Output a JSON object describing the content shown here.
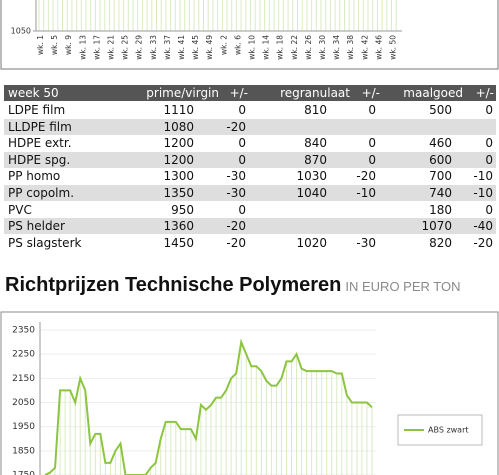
{
  "top_chart": {
    "yticks": [
      1050
    ],
    "x_labels": [
      "wk. 1",
      "wk. 5",
      "wk. 9",
      "wk. 13",
      "wk. 17",
      "wk. 21",
      "wk. 25",
      "wk. 29",
      "wk. 33",
      "wk. 37",
      "wk. 41",
      "wk. 45",
      "wk. 49",
      "wk. 2",
      "wk. 6",
      "wk. 10",
      "wk. 14",
      "wk. 18",
      "wk. 22",
      "wk. 26",
      "wk. 30",
      "wk. 34",
      "wk. 38",
      "wk. 42",
      "wk. 46",
      "wk. 50"
    ]
  },
  "table": {
    "header": [
      "week 50",
      "prime/virgin",
      "+/-",
      "regranulaat",
      "+/-",
      "maalgoed",
      "+/-"
    ],
    "rows": [
      [
        "LDPE film",
        1110,
        0,
        810,
        0,
        500,
        0
      ],
      [
        "LLDPE film",
        1080,
        -20,
        null,
        null,
        null,
        null
      ],
      [
        "HDPE extr.",
        1200,
        0,
        840,
        0,
        460,
        0
      ],
      [
        "HDPE spg.",
        1200,
        0,
        870,
        0,
        600,
        0
      ],
      [
        "PP homo",
        1300,
        -30,
        1030,
        -20,
        700,
        -10
      ],
      [
        "PP copolm.",
        1350,
        -30,
        1040,
        -10,
        740,
        -10
      ],
      [
        "PVC",
        950,
        0,
        null,
        null,
        180,
        0
      ],
      [
        "PS helder",
        1360,
        -20,
        null,
        null,
        1070,
        -40
      ],
      [
        "PS slagsterk",
        1450,
        -20,
        1020,
        -30,
        820,
        -20
      ]
    ]
  },
  "heading": {
    "title": "Richtprijzen Technische Polymeren",
    "subtitle": "IN EURO PER TON"
  },
  "chart": {
    "type": "line",
    "ylim": [
      1750,
      2350
    ],
    "yticks": [
      2350,
      2250,
      2150,
      2050,
      1950,
      1850,
      1750
    ],
    "grid": true,
    "series": [
      {
        "name": "ABS zwart",
        "color": "#8cc540",
        "values": [
          1750,
          1760,
          1780,
          2100,
          2100,
          2100,
          2050,
          2150,
          2100,
          1880,
          1920,
          1920,
          1800,
          1800,
          1850,
          1880,
          1750,
          1750,
          1750,
          1750,
          1750,
          1780,
          1800,
          1900,
          1970,
          1970,
          1970,
          1940,
          1940,
          1940,
          1900,
          2040,
          2020,
          2040,
          2070,
          2070,
          2100,
          2150,
          2170,
          2300,
          2250,
          2200,
          2200,
          2180,
          2140,
          2120,
          2120,
          2150,
          2220,
          2220,
          2250,
          2190,
          2180,
          2180,
          2180,
          2180,
          2180,
          2180,
          2170,
          2170,
          2080,
          2050,
          2050,
          2050,
          2050,
          2030
        ]
      }
    ]
  }
}
